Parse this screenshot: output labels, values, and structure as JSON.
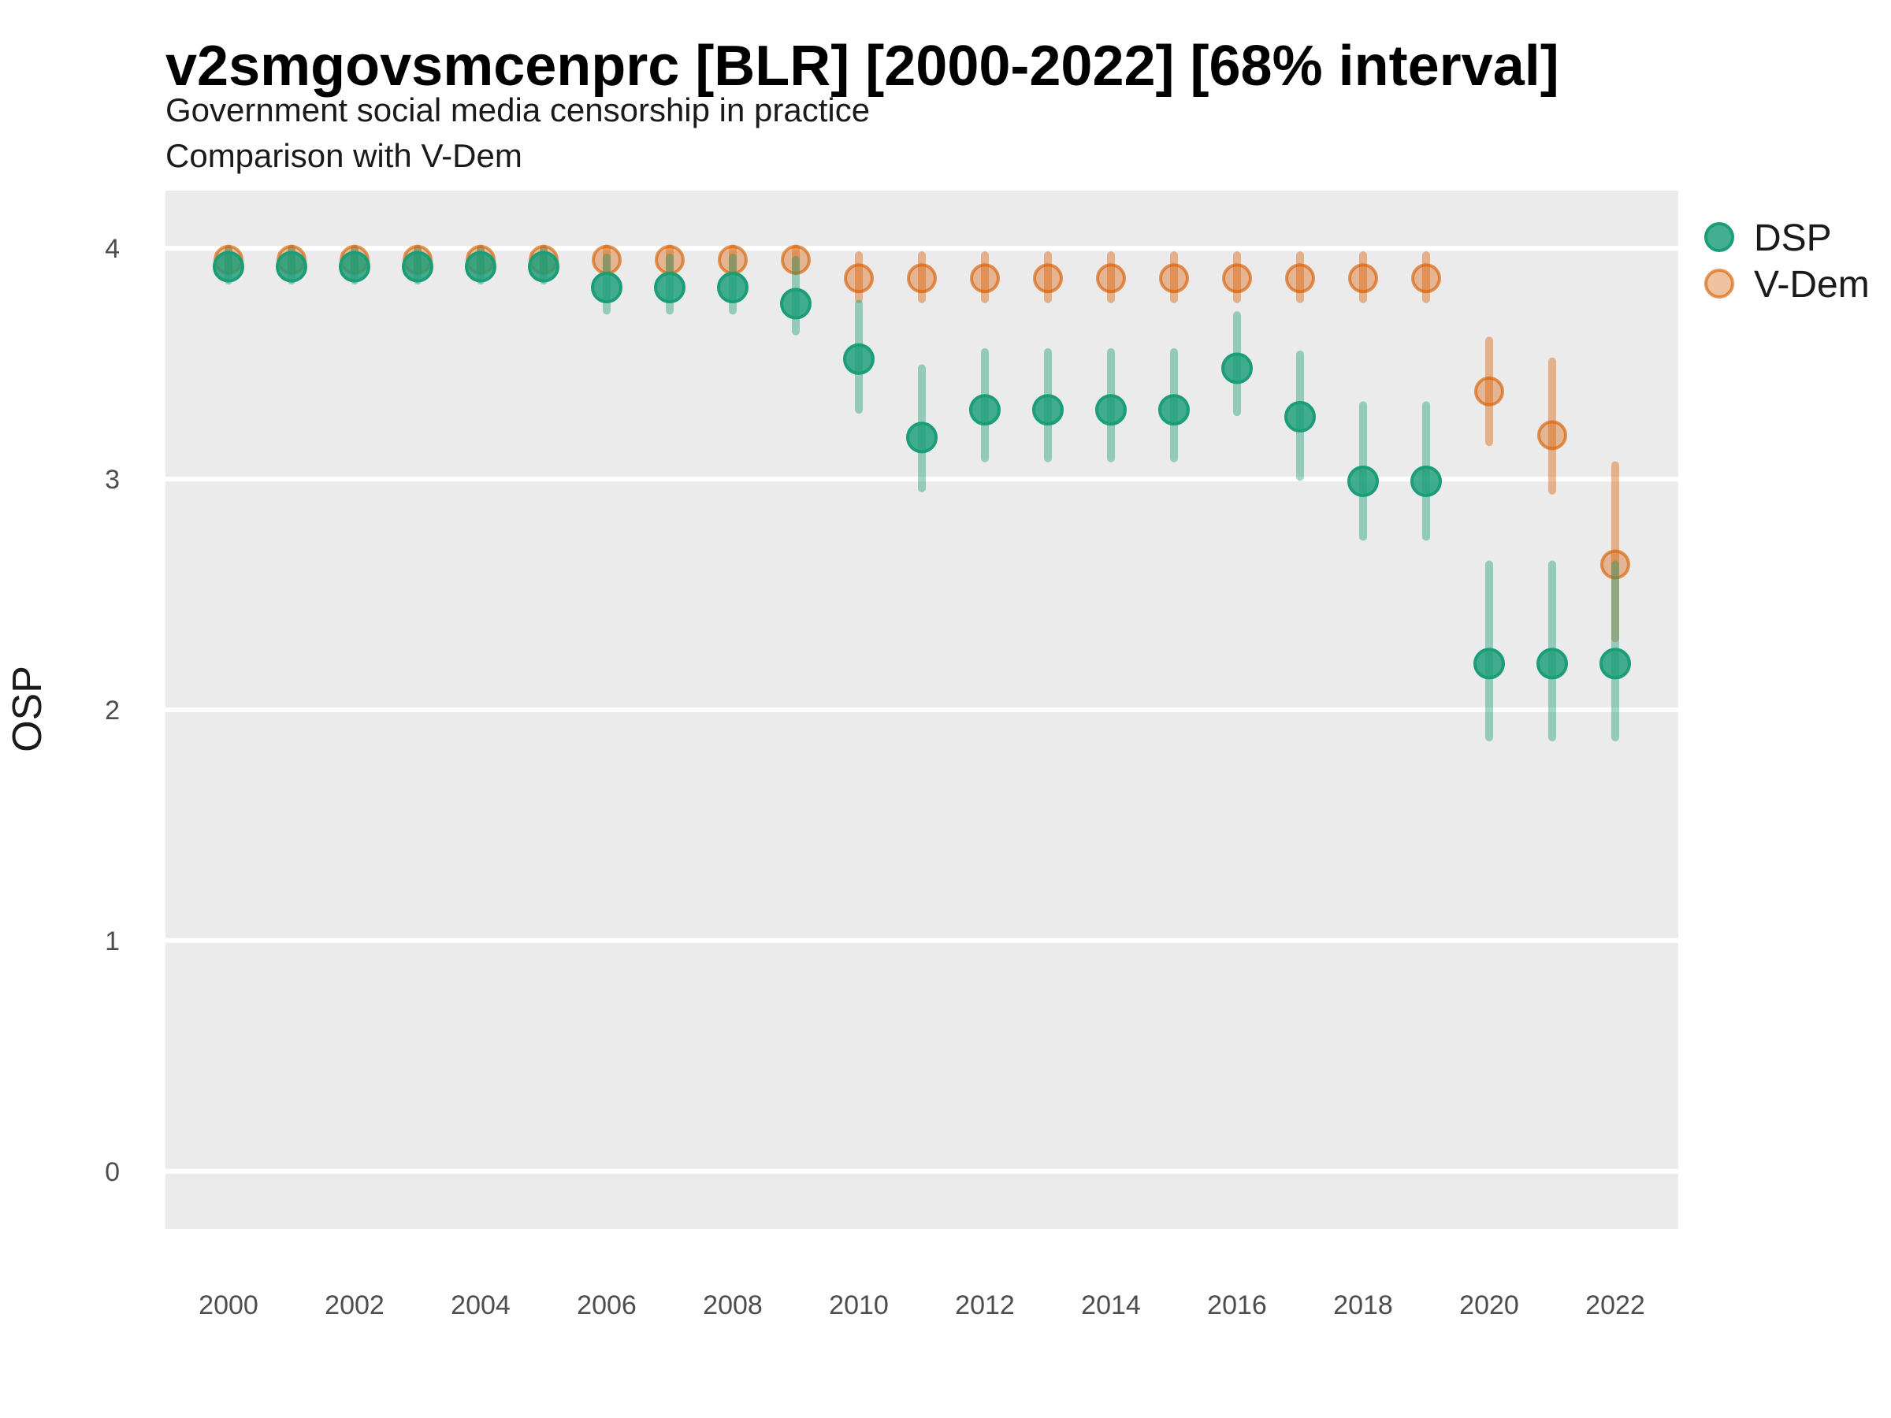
{
  "header": {
    "title": "v2smgovsmcenprc [BLR] [2000-2022] [68% interval]",
    "subtitle1": "Government social media censorship in practice",
    "subtitle2": "Comparison with V-Dem"
  },
  "axes": {
    "y_title": "OSP",
    "y_ticks": [
      "0",
      "1",
      "2",
      "3",
      "4"
    ],
    "x_ticks": [
      "2000",
      "2002",
      "2004",
      "2006",
      "2008",
      "2010",
      "2012",
      "2014",
      "2016",
      "2018",
      "2020",
      "2022"
    ]
  },
  "legend": {
    "items": [
      {
        "label": "DSP",
        "color": "#1B9E77"
      },
      {
        "label": "V-Dem",
        "color": "#D95F02"
      }
    ]
  },
  "colors": {
    "dsp": "#1B9E77",
    "vdem": "#D95F02",
    "panel": "#EBEBEB",
    "gridline": "#FFFFFF",
    "tick_text": "#4D4D4D",
    "text": "#000000"
  },
  "chart_data": {
    "type": "scatter",
    "title": "v2smgovsmcenprc [BLR] [2000-2022] [68% interval]",
    "subtitle": "Government social media censorship in practice — Comparison with V-Dem",
    "xlabel": "",
    "ylabel": "OSP",
    "interval": "68%",
    "xlim": [
      1999,
      2023
    ],
    "ylim": [
      -0.25,
      4.25
    ],
    "grid": "major-y-white-on-gray",
    "legend_position": "right",
    "x": [
      2000,
      2001,
      2002,
      2003,
      2004,
      2005,
      2006,
      2007,
      2008,
      2009,
      2010,
      2011,
      2012,
      2013,
      2014,
      2015,
      2016,
      2017,
      2018,
      2019,
      2020,
      2021,
      2022
    ],
    "xtick_values": [
      2000,
      2002,
      2004,
      2006,
      2008,
      2010,
      2012,
      2014,
      2016,
      2018,
      2020,
      2022
    ],
    "ytick_values": [
      0,
      1,
      2,
      3,
      4
    ],
    "series": [
      {
        "name": "V-Dem",
        "color": "#D95F02",
        "values": [
          3.95,
          3.95,
          3.95,
          3.95,
          3.95,
          3.95,
          3.95,
          3.95,
          3.95,
          3.95,
          3.87,
          3.87,
          3.87,
          3.87,
          3.87,
          3.87,
          3.87,
          3.87,
          3.87,
          3.87,
          3.38,
          3.19,
          2.63
        ],
        "lower": [
          3.9,
          3.9,
          3.9,
          3.9,
          3.9,
          3.9,
          3.9,
          3.9,
          3.9,
          3.9,
          3.78,
          3.78,
          3.78,
          3.78,
          3.78,
          3.78,
          3.78,
          3.78,
          3.78,
          3.78,
          3.16,
          2.95,
          2.31
        ],
        "upper": [
          4.0,
          4.0,
          4.0,
          4.0,
          4.0,
          4.0,
          4.0,
          4.0,
          4.0,
          4.0,
          3.97,
          3.97,
          3.97,
          3.97,
          3.97,
          3.97,
          3.97,
          3.97,
          3.97,
          3.97,
          3.6,
          3.51,
          3.06
        ]
      },
      {
        "name": "DSP",
        "color": "#1B9E77",
        "values": [
          3.92,
          3.92,
          3.92,
          3.92,
          3.92,
          3.92,
          3.83,
          3.83,
          3.83,
          3.76,
          3.52,
          3.18,
          3.3,
          3.3,
          3.3,
          3.3,
          3.48,
          3.27,
          2.99,
          2.99,
          2.2,
          2.2,
          2.2
        ],
        "lower": [
          3.86,
          3.86,
          3.86,
          3.86,
          3.86,
          3.86,
          3.73,
          3.73,
          3.73,
          3.64,
          3.3,
          2.96,
          3.09,
          3.09,
          3.09,
          3.09,
          3.29,
          3.01,
          2.75,
          2.75,
          1.88,
          1.88,
          1.88
        ],
        "upper": [
          3.99,
          3.99,
          3.99,
          3.99,
          3.99,
          3.99,
          3.96,
          3.96,
          3.96,
          3.95,
          3.76,
          3.48,
          3.55,
          3.55,
          3.55,
          3.55,
          3.71,
          3.54,
          3.32,
          3.32,
          2.63,
          2.63,
          2.63
        ]
      }
    ]
  }
}
